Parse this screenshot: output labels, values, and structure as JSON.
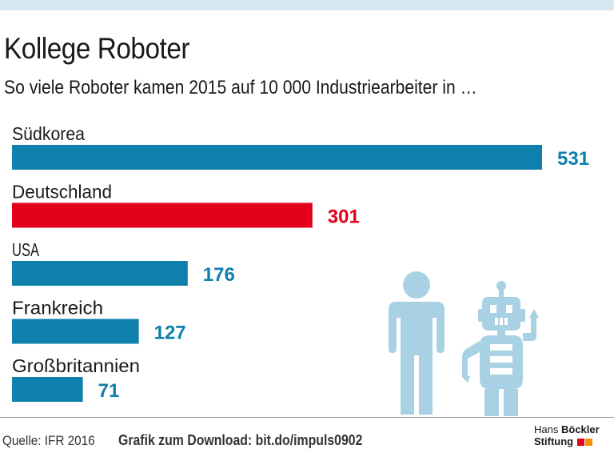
{
  "header": {
    "title": "Kollege Roboter",
    "subtitle": "So viele Roboter kamen 2015 auf 10 000 Industriearbeiter in …"
  },
  "chart_data": {
    "type": "bar",
    "orientation": "horizontal",
    "title": "Kollege Roboter",
    "subtitle": "So viele Roboter kamen 2015 auf 10 000 Industriearbeiter in …",
    "categories": [
      "Südkorea",
      "Deutschland",
      "USA",
      "Frankreich",
      "Großbritannien"
    ],
    "values": [
      531,
      301,
      176,
      127,
      71
    ],
    "value_labels": [
      "531",
      "301",
      "176",
      "127",
      "71"
    ],
    "highlight": "Deutschland",
    "xlim": [
      0,
      531
    ],
    "colors": {
      "default": "#0f7fab",
      "highlight": "#e2001a"
    }
  },
  "illustration": {
    "person": "person-icon",
    "robot": "robot-icon",
    "color": "#a9d1e4"
  },
  "footer": {
    "source": "Quelle: IFR 2016",
    "download": "Grafik zum Download: bit.do/impuls0902"
  },
  "logo": {
    "line1_a": "Hans",
    "line1_b": "Böckler",
    "line2": "Stiftung",
    "accent_colors": [
      "#e2001a",
      "#f39200"
    ]
  }
}
